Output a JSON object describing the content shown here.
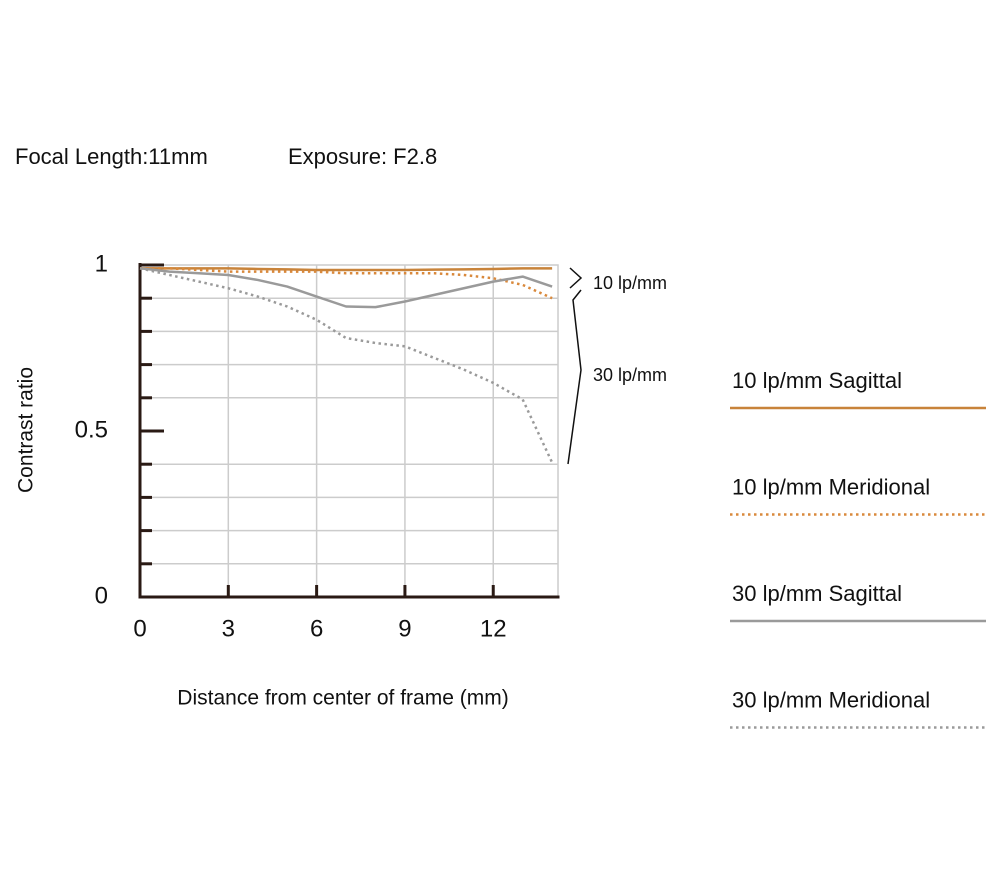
{
  "chart_data": {
    "type": "line",
    "title": "Focal Length:11mm",
    "subtitle": "Exposure: F2.8",
    "xlabel": "Distance from center of frame (mm)",
    "ylabel": "Contrast ratio",
    "x": [
      0,
      1,
      2,
      3,
      4,
      5,
      6,
      7,
      8,
      9,
      10,
      11,
      12,
      13,
      14
    ],
    "xlim": [
      0,
      14.2
    ],
    "xticks": [
      0,
      3,
      6,
      9,
      12
    ],
    "ylim": [
      0,
      1
    ],
    "yticks": [
      0,
      0.5,
      1
    ],
    "yminorticks": [
      0.1,
      0.2,
      0.3,
      0.4,
      0.6,
      0.7,
      0.8,
      0.9
    ],
    "grid": true,
    "annotations": [
      "10 lp/mm",
      "30 lp/mm"
    ],
    "series": [
      {
        "name": "10 lp/mm Sagittal",
        "color": "#c8833a",
        "style": "solid",
        "values": [
          0.99,
          0.99,
          0.99,
          0.99,
          0.988,
          0.987,
          0.985,
          0.985,
          0.985,
          0.985,
          0.986,
          0.987,
          0.988,
          0.99,
          0.99
        ]
      },
      {
        "name": "10 lp/mm Meridional",
        "color": "#d9893c",
        "style": "dotted",
        "values": [
          0.99,
          0.99,
          0.985,
          0.98,
          0.98,
          0.98,
          0.98,
          0.975,
          0.975,
          0.975,
          0.975,
          0.97,
          0.96,
          0.94,
          0.9
        ]
      },
      {
        "name": "30 lp/mm Sagittal",
        "color": "#9a9a9a",
        "style": "solid",
        "values": [
          0.99,
          0.98,
          0.975,
          0.97,
          0.955,
          0.935,
          0.905,
          0.875,
          0.873,
          0.89,
          0.91,
          0.93,
          0.95,
          0.965,
          0.935
        ]
      },
      {
        "name": "30 lp/mm Meridional",
        "color": "#9a9a9a",
        "style": "dotted",
        "values": [
          0.99,
          0.97,
          0.95,
          0.93,
          0.905,
          0.875,
          0.835,
          0.78,
          0.765,
          0.755,
          0.72,
          0.685,
          0.645,
          0.595,
          0.405
        ]
      }
    ]
  }
}
